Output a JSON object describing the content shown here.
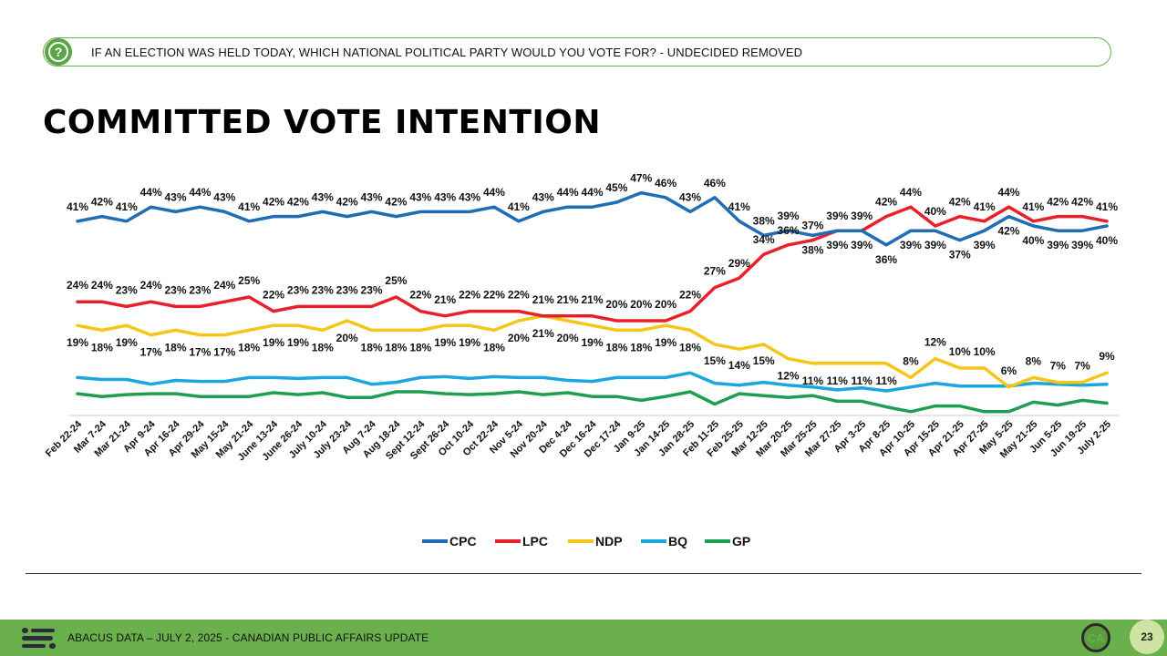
{
  "question": {
    "icon": "question-icon",
    "text": "IF AN ELECTION WAS HELD TODAY, WHICH NATIONAL POLITICAL PARTY WOULD YOU VOTE FOR? - UNDECIDED REMOVED"
  },
  "title": "COMMITTED VOTE INTENTION",
  "footer": {
    "text": "ABACUS DATA – JULY 2, 2025 - CANADIAN PUBLIC AFFAIRS UPDATE",
    "badge": "CA",
    "page_number": "23"
  },
  "chart_data": {
    "type": "line",
    "grid": false,
    "legend_position": "bottom",
    "x": [
      "Feb 22-24",
      "Mar 7-24",
      "Mar 21-24",
      "Apr 9-24",
      "Apr 16-24",
      "Apr 29-24",
      "May 15-24",
      "May 21-24",
      "June 13-24",
      "June 26-24",
      "July 10-24",
      "July 23-24",
      "Aug 7-24",
      "Aug 18-24",
      "Sept 12-24",
      "Sept 26-24",
      "Oct 10-24",
      "Oct 22-24",
      "Nov 5-24",
      "Nov 20-24",
      "Dec 4-24",
      "Dec 16-24",
      "Dec 17-24",
      "Jan 9-25",
      "Jan 14-25",
      "Jan 28-25",
      "Feb 11-25",
      "Feb 25-25",
      "Mar 12-25",
      "Mar 20-25",
      "Mar 25-25",
      "Mar 27-25",
      "Apr 3-25",
      "Apr 8-25",
      "Apr 10-25",
      "Apr 15-25",
      "Apr 21-25",
      "Apr 27-25",
      "May 5-25",
      "May 21-25",
      "Jun 5-25",
      "Jun 19-25",
      "July 2-25"
    ],
    "series": [
      {
        "name": "CPC",
        "color": "#1f6db5",
        "values": [
          41,
          42,
          41,
          44,
          43,
          44,
          43,
          41,
          42,
          42,
          43,
          42,
          43,
          42,
          43,
          43,
          43,
          44,
          41,
          43,
          44,
          44,
          45,
          47,
          46,
          43,
          46,
          41,
          38,
          39,
          38,
          39,
          39,
          36,
          39,
          39,
          37,
          39,
          42,
          40,
          39,
          39,
          40
        ],
        "labels": [
          "41%",
          "42%",
          "41%",
          "44%",
          "43%",
          "44%",
          "43%",
          "41%",
          "42%",
          "42%",
          "43%",
          "42%",
          "43%",
          "42%",
          "43%",
          "43%",
          "43%",
          "44%",
          "41%",
          "43%",
          "44%",
          "44%",
          "45%",
          "47%",
          "46%",
          "43%",
          "46%",
          "41%",
          "38%",
          "39%",
          "38%",
          "39%",
          "39%",
          "36%",
          "39%",
          "39%",
          "37%",
          "39%",
          "42%",
          "40%",
          "39%",
          "39%",
          "40%"
        ]
      },
      {
        "name": "LPC",
        "color": "#e8202a",
        "values": [
          24,
          24,
          23,
          24,
          23,
          23,
          24,
          25,
          22,
          23,
          23,
          23,
          23,
          25,
          22,
          21,
          22,
          22,
          22,
          21,
          21,
          21,
          20,
          20,
          20,
          22,
          27,
          29,
          34,
          36,
          37,
          39,
          39,
          42,
          44,
          40,
          42,
          41,
          44,
          41,
          42,
          42,
          41
        ],
        "labels": [
          "24%",
          "24%",
          "23%",
          "24%",
          "23%",
          "23%",
          "24%",
          "25%",
          "22%",
          "23%",
          "23%",
          "23%",
          "23%",
          "25%",
          "22%",
          "21%",
          "22%",
          "22%",
          "22%",
          "21%",
          "21%",
          "21%",
          "20%",
          "20%",
          "20%",
          "22%",
          "27%",
          "29%",
          "34%",
          "36%",
          "37%",
          "39%",
          "39%",
          "42%",
          "44%",
          "40%",
          "42%",
          "41%",
          "44%",
          "41%",
          "42%",
          "42%",
          "41%"
        ]
      },
      {
        "name": "NDP",
        "color": "#f5c518",
        "values": [
          19,
          18,
          19,
          17,
          18,
          17,
          17,
          18,
          19,
          19,
          18,
          20,
          18,
          18,
          18,
          19,
          19,
          18,
          20,
          21,
          20,
          19,
          18,
          18,
          19,
          18,
          15,
          14,
          15,
          12,
          11,
          11,
          11,
          11,
          8,
          12,
          10,
          10,
          6,
          8,
          7,
          7,
          9
        ],
        "labels": [
          "19%",
          "18%",
          "19%",
          "17%",
          "18%",
          "17%",
          "17%",
          "18%",
          "19%",
          "19%",
          "18%",
          "20%",
          "18%",
          "18%",
          "18%",
          "19%",
          "19%",
          "18%",
          "20%",
          "21%",
          "20%",
          "19%",
          "18%",
          "18%",
          "19%",
          "18%",
          "15%",
          "14%",
          "15%",
          "12%",
          "11%",
          "11%",
          "11%",
          "11%",
          "8%",
          "12%",
          "10%",
          "10%",
          "6%",
          "8%",
          "7%",
          "7%",
          "9%"
        ]
      },
      {
        "name": "BQ",
        "color": "#19a7e0",
        "values": [
          8,
          7.6,
          7.6,
          6.6,
          7.4,
          7.2,
          7.2,
          8,
          8,
          7.8,
          8,
          8,
          6.6,
          7,
          8,
          8.2,
          7.8,
          8.2,
          8,
          8,
          7.4,
          7.2,
          8,
          8,
          8,
          9,
          6.8,
          6.4,
          7,
          6.4,
          6,
          5.4,
          5.8,
          5.2,
          6,
          6.8,
          6.2,
          6.2,
          6.2,
          6.8,
          6.6,
          6.4,
          6.6
        ],
        "labels": []
      },
      {
        "name": "GP",
        "color": "#1e9e50",
        "values": [
          4.6,
          4,
          4.4,
          4.6,
          4.6,
          4,
          4,
          4,
          4.8,
          4.4,
          4.8,
          3.8,
          3.8,
          5,
          5,
          4.6,
          4.4,
          4.6,
          5,
          4.4,
          4.8,
          4,
          4,
          3.2,
          4,
          5,
          2.4,
          4.6,
          4.2,
          3.8,
          4.2,
          3,
          3,
          1.8,
          0.8,
          2,
          2,
          0.8,
          0.8,
          2.8,
          2.2,
          3.2,
          2.6
        ],
        "labels": []
      }
    ]
  }
}
